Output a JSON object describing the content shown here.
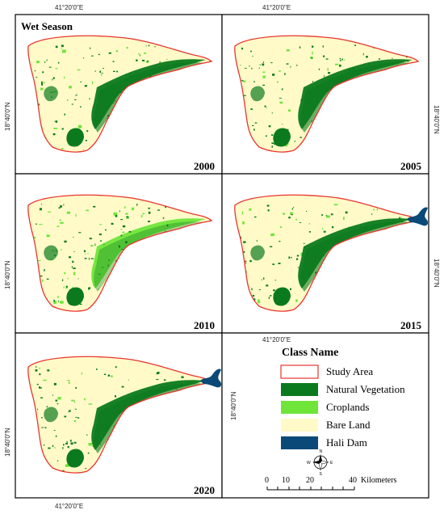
{
  "figure": {
    "season_label": "Wet Season",
    "coord_top_left": "41°20'0\"E",
    "coord_top_right": "41°20'0\"E",
    "coord_mid_right": "41°20'0\"E",
    "coord_bottom": "41°20'0\"E",
    "coord_left": "18°40'0\"N",
    "coord_right": "18°40'0\"N"
  },
  "panels": [
    {
      "year": "2000",
      "dam": false
    },
    {
      "year": "2005",
      "dam": false
    },
    {
      "year": "2010",
      "dam": false
    },
    {
      "year": "2015",
      "dam": true
    },
    {
      "year": "2020",
      "dam": true
    }
  ],
  "legend": {
    "title": "Class Name",
    "items": [
      {
        "label": "Study Area",
        "color": "#ffffff",
        "border": "#e8352f"
      },
      {
        "label": "Natural Vegetation",
        "color": "#0b7a1e"
      },
      {
        "label": "Croplands",
        "color": "#6fe53a"
      },
      {
        "label": "Bare Land",
        "color": "#fffac8"
      },
      {
        "label": "Hali Dam",
        "color": "#0b4a78"
      }
    ]
  },
  "compass": {
    "n": "N",
    "s": "S",
    "e": "E",
    "w": "W"
  },
  "scale_bar": {
    "ticks": [
      "0",
      "10",
      "20",
      "40"
    ],
    "unit": "Kilometers"
  },
  "colors": {
    "bare_land": "#fffac8",
    "natural_vegetation": "#0b7a1e",
    "croplands": "#6fe53a",
    "study_area_outline": "#e8352f",
    "dam": "#0b4a78"
  }
}
